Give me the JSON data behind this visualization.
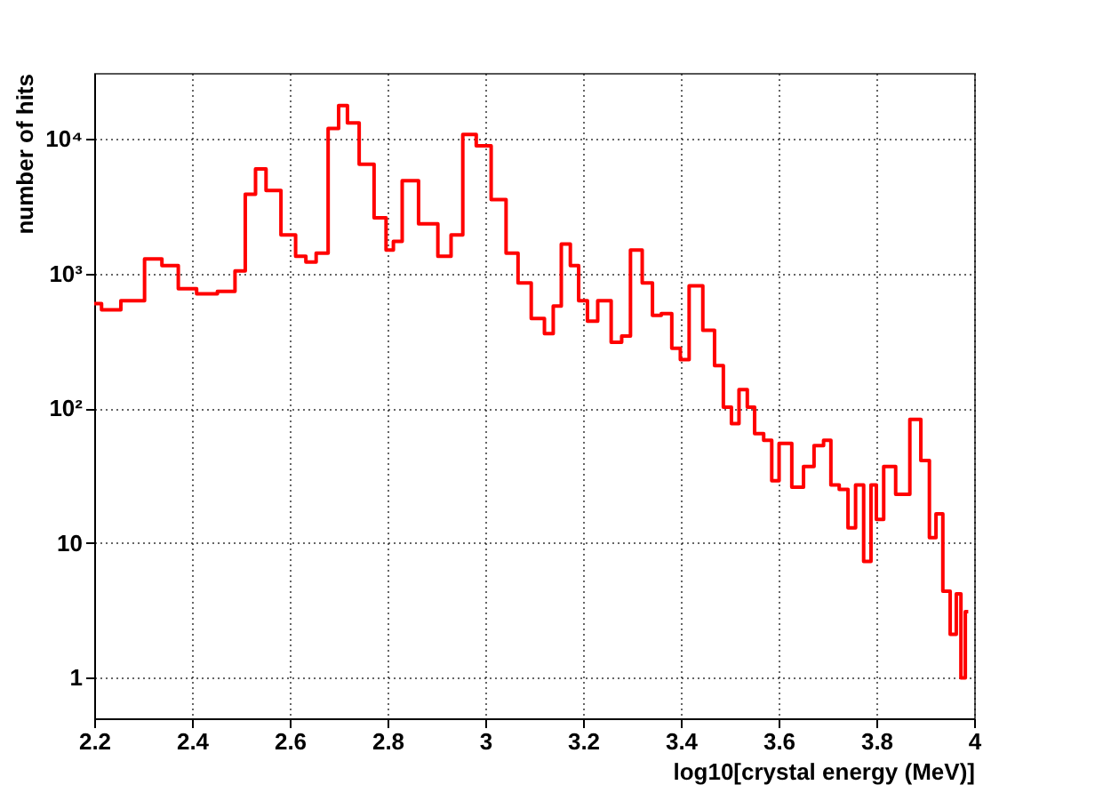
{
  "chart_data": {
    "type": "step",
    "xlabel": "log10[crystal energy (MeV)]",
    "ylabel": "number of hits",
    "x": [
      2.2,
      2.23,
      2.279,
      2.327,
      2.35,
      2.394,
      2.425,
      2.479,
      2.497,
      2.521,
      2.539,
      2.564,
      2.6,
      2.624,
      2.642,
      2.666,
      2.691,
      2.709,
      2.727,
      2.757,
      2.788,
      2.806,
      2.818,
      2.842,
      2.885,
      2.921,
      2.939,
      2.969,
      2.994,
      3.03,
      3.055,
      3.079,
      3.109,
      3.133,
      3.145,
      3.166,
      3.182,
      3.2,
      3.218,
      3.242,
      3.273,
      3.285,
      3.309,
      3.333,
      3.351,
      3.369,
      3.394,
      3.404,
      3.43,
      3.46,
      3.478,
      3.496,
      3.511,
      3.527,
      3.545,
      3.557,
      3.582,
      3.59,
      3.612,
      3.642,
      3.66,
      3.685,
      3.699,
      3.715,
      3.733,
      3.751,
      3.764,
      3.784,
      3.794,
      3.806,
      3.824,
      3.855,
      3.882,
      3.9,
      3.917,
      3.927,
      3.945,
      3.957,
      3.97,
      3.976,
      3.988
    ],
    "series": [
      {
        "color": "#ff0000",
        "values": [
          600,
          540,
          630,
          1290,
          1150,
          775,
          710,
          740,
          1050,
          3900,
          6000,
          4150,
          1940,
          1350,
          1220,
          1420,
          12000,
          17700,
          13200,
          6500,
          2600,
          1500,
          1740,
          4900,
          2350,
          1350,
          1940,
          10800,
          8900,
          3550,
          1420,
          855,
          465,
          360,
          575,
          1660,
          1150,
          630,
          445,
          630,
          310,
          345,
          1500,
          855,
          490,
          505,
          280,
          230,
          815,
          380,
          208,
          102,
          77,
          138,
          102,
          65,
          58,
          29,
          55,
          26,
          37,
          53,
          58,
          27,
          25,
          13,
          27,
          7.3,
          27,
          15,
          37,
          23,
          83,
          41,
          11,
          16.5,
          4.4,
          2.1,
          4.2,
          1,
          3.1
        ]
      }
    ],
    "xlim": [
      2.2,
      4.0
    ],
    "xticks": [
      2.2,
      2.4,
      2.6,
      2.8,
      3,
      3.2,
      3.4,
      3.6,
      3.8,
      4
    ],
    "ylim": [
      0.5,
      31000
    ],
    "log": "y",
    "yticks": [
      1,
      10,
      {
        "value": 100,
        "label": "10²"
      },
      {
        "value": 1000,
        "label": "10³"
      },
      {
        "value": 10000,
        "label": "10⁴"
      }
    ],
    "grid": true,
    "legend": false
  }
}
